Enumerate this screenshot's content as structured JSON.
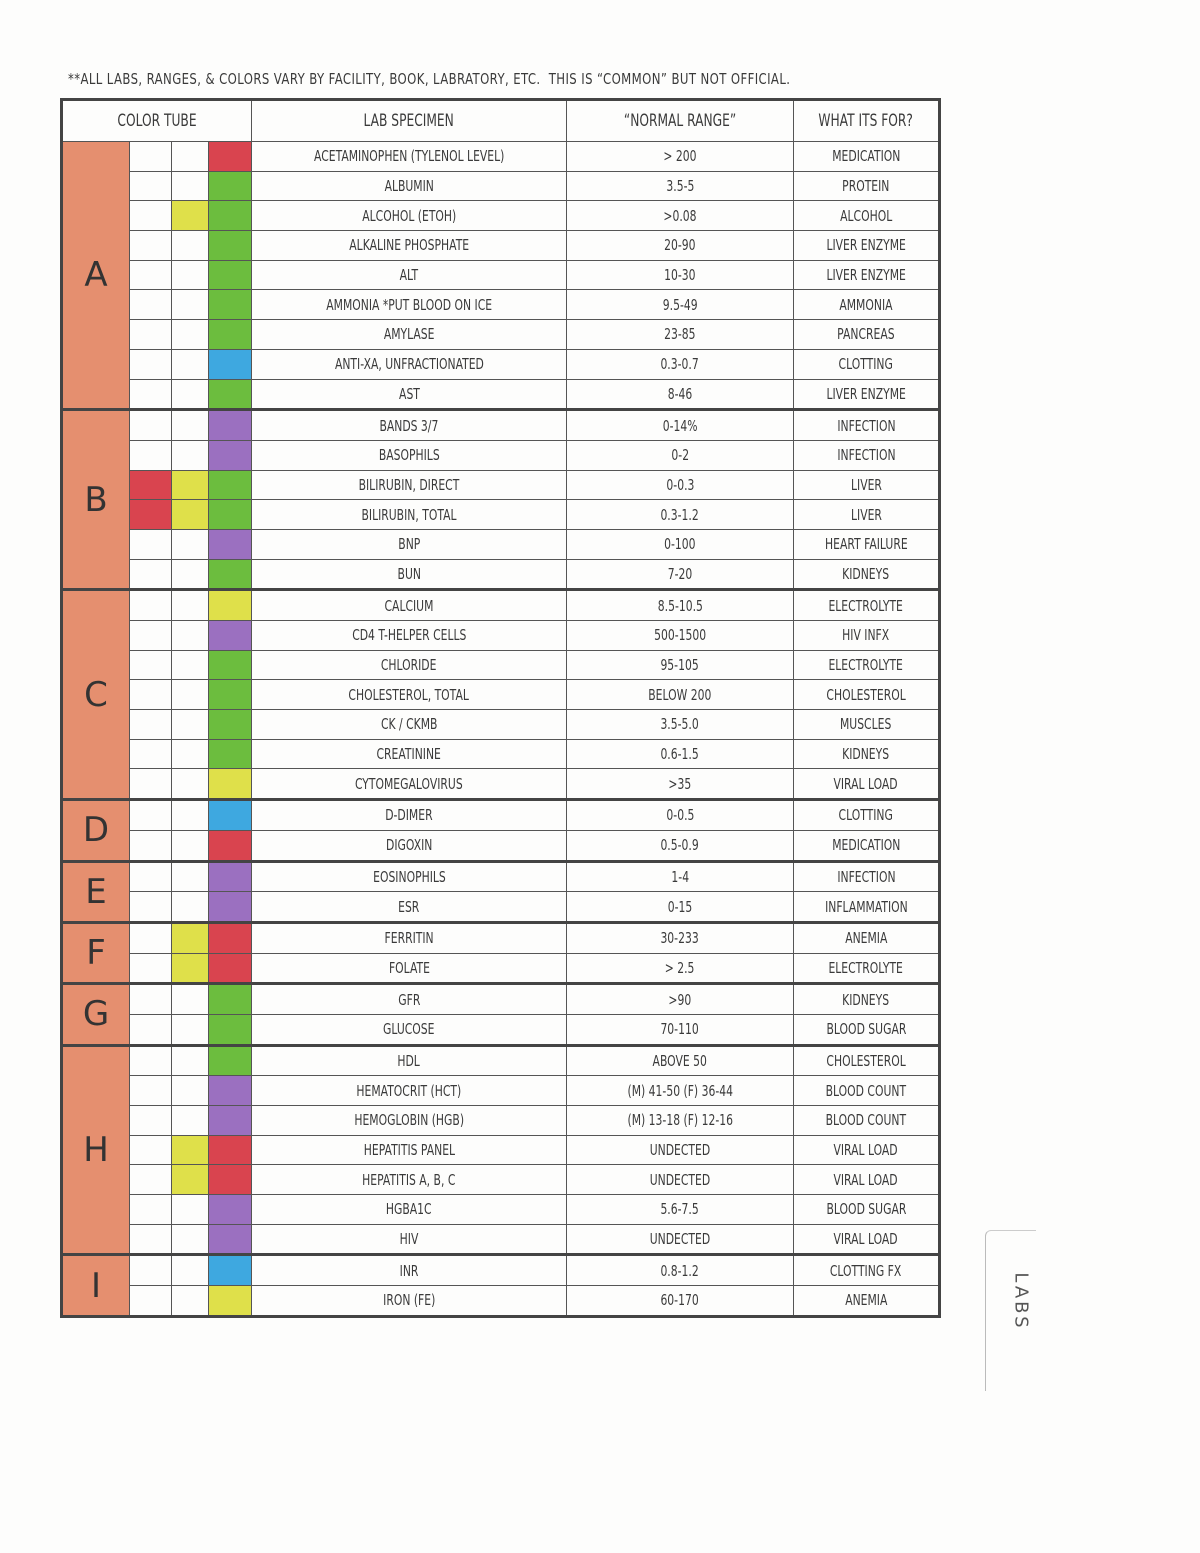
{
  "header": {
    "note": "**ALL LABS, RANGES, & COLORS VARY BY FACILITY, BOOK, LABRATORY, ETC.  THIS IS “COMMON” BUT NOT OFFICIAL."
  },
  "tab": "LABS",
  "table": {
    "columns": [
      "COLOR TUBE",
      "LAB SPECIMEN",
      "“NORMAL RANGE”",
      "WHAT ITS FOR?"
    ],
    "group_color": "#e58f6f",
    "groups": [
      {
        "letter": "A",
        "rows": [
          {
            "tubes": [
              null,
              null,
              "#d9444f"
            ],
            "specimen": "ACETAMINOPHEN (TYLENOL LEVEL)",
            "range": "> 200",
            "purpose": "MEDICATION"
          },
          {
            "tubes": [
              null,
              null,
              "#6cbd3e"
            ],
            "specimen": "ALBUMIN",
            "range": "3.5-5",
            "purpose": "PROTEIN"
          },
          {
            "tubes": [
              null,
              "#dfe04a",
              "#6cbd3e"
            ],
            "specimen": "ALCOHOL (ETOH)",
            "range": ">0.08",
            "purpose": "ALCOHOL"
          },
          {
            "tubes": [
              null,
              null,
              "#6cbd3e"
            ],
            "specimen": "ALKALINE PHOSPHATE",
            "range": "20-90",
            "purpose": "LIVER ENZYME"
          },
          {
            "tubes": [
              null,
              null,
              "#6cbd3e"
            ],
            "specimen": "ALT",
            "range": "10-30",
            "purpose": "LIVER ENZYME"
          },
          {
            "tubes": [
              null,
              null,
              "#6cbd3e"
            ],
            "specimen": "AMMONIA *PUT BLOOD ON ICE",
            "range": "9.5-49",
            "purpose": "AMMONIA"
          },
          {
            "tubes": [
              null,
              null,
              "#6cbd3e"
            ],
            "specimen": "AMYLASE",
            "range": "23-85",
            "purpose": "PANCREAS"
          },
          {
            "tubes": [
              null,
              null,
              "#3ea8e0"
            ],
            "specimen": "ANTI-XA, UNFRACTIONATED",
            "range": "0.3-0.7",
            "purpose": "CLOTTING"
          },
          {
            "tubes": [
              null,
              null,
              "#6cbd3e"
            ],
            "specimen": "AST",
            "range": "8-46",
            "purpose": "LIVER ENZYME"
          }
        ]
      },
      {
        "letter": "B",
        "rows": [
          {
            "tubes": [
              null,
              null,
              "#9b70c0"
            ],
            "specimen": "BANDS 3/7",
            "range": "0-14%",
            "purpose": "INFECTION"
          },
          {
            "tubes": [
              null,
              null,
              "#9b70c0"
            ],
            "specimen": "BASOPHILS",
            "range": "0-2",
            "purpose": "INFECTION"
          },
          {
            "tubes": [
              "#d9444f",
              "#dfe04a",
              "#6cbd3e"
            ],
            "specimen": "BILIRUBIN, DIRECT",
            "range": "0-0.3",
            "purpose": "LIVER"
          },
          {
            "tubes": [
              "#d9444f",
              "#dfe04a",
              "#6cbd3e"
            ],
            "specimen": "BILIRUBIN, TOTAL",
            "range": "0.3-1.2",
            "purpose": "LIVER"
          },
          {
            "tubes": [
              null,
              null,
              "#9b70c0"
            ],
            "specimen": "BNP",
            "range": "0-100",
            "purpose": "HEART FAILURE"
          },
          {
            "tubes": [
              null,
              null,
              "#6cbd3e"
            ],
            "specimen": "BUN",
            "range": "7-20",
            "purpose": "KIDNEYS"
          }
        ]
      },
      {
        "letter": "C",
        "rows": [
          {
            "tubes": [
              null,
              null,
              "#dfe04a"
            ],
            "specimen": "CALCIUM",
            "range": "8.5-10.5",
            "purpose": "ELECTROLYTE"
          },
          {
            "tubes": [
              null,
              null,
              "#9b70c0"
            ],
            "specimen": "CD4 T-HELPER CELLS",
            "range": "500-1500",
            "purpose": "HIV INFX"
          },
          {
            "tubes": [
              null,
              null,
              "#6cbd3e"
            ],
            "specimen": "CHLORIDE",
            "range": "95-105",
            "purpose": "ELECTROLYTE"
          },
          {
            "tubes": [
              null,
              null,
              "#6cbd3e"
            ],
            "specimen": "CHOLESTEROL, TOTAL",
            "range": "BELOW 200",
            "purpose": "CHOLESTEROL"
          },
          {
            "tubes": [
              null,
              null,
              "#6cbd3e"
            ],
            "specimen": "CK / CKMB",
            "range": "3.5-5.0",
            "purpose": "MUSCLES"
          },
          {
            "tubes": [
              null,
              null,
              "#6cbd3e"
            ],
            "specimen": "CREATININE",
            "range": "0.6-1.5",
            "purpose": "KIDNEYS"
          },
          {
            "tubes": [
              null,
              null,
              "#dfe04a"
            ],
            "specimen": "CYTOMEGALOVIRUS",
            "range": ">35",
            "purpose": "VIRAL LOAD"
          }
        ]
      },
      {
        "letter": "D",
        "rows": [
          {
            "tubes": [
              null,
              null,
              "#3ea8e0"
            ],
            "specimen": "D-DIMER",
            "range": "0-0.5",
            "purpose": "CLOTTING"
          },
          {
            "tubes": [
              null,
              null,
              "#d9444f"
            ],
            "specimen": "DIGOXIN",
            "range": "0.5-0.9",
            "purpose": "MEDICATION"
          }
        ]
      },
      {
        "letter": "E",
        "rows": [
          {
            "tubes": [
              null,
              null,
              "#9b70c0"
            ],
            "specimen": "EOSINOPHILS",
            "range": "1-4",
            "purpose": "INFECTION"
          },
          {
            "tubes": [
              null,
              null,
              "#9b70c0"
            ],
            "specimen": "ESR",
            "range": "0-15",
            "purpose": "INFLAMMATION"
          }
        ]
      },
      {
        "letter": "F",
        "rows": [
          {
            "tubes": [
              null,
              "#dfe04a",
              "#d9444f"
            ],
            "specimen": "FERRITIN",
            "range": "30-233",
            "purpose": "ANEMIA"
          },
          {
            "tubes": [
              null,
              "#dfe04a",
              "#d9444f"
            ],
            "specimen": "FOLATE",
            "range": "> 2.5",
            "purpose": "ELECTROLYTE"
          }
        ]
      },
      {
        "letter": "G",
        "rows": [
          {
            "tubes": [
              null,
              null,
              "#6cbd3e"
            ],
            "specimen": "GFR",
            "range": ">90",
            "purpose": "KIDNEYS"
          },
          {
            "tubes": [
              null,
              null,
              "#6cbd3e"
            ],
            "specimen": "GLUCOSE",
            "range": "70-110",
            "purpose": "BLOOD SUGAR"
          }
        ]
      },
      {
        "letter": "H",
        "rows": [
          {
            "tubes": [
              null,
              null,
              "#6cbd3e"
            ],
            "specimen": "HDL",
            "range": "ABOVE 50",
            "purpose": "CHOLESTEROL"
          },
          {
            "tubes": [
              null,
              null,
              "#9b70c0"
            ],
            "specimen": "HEMATOCRIT (HCT)",
            "range": "(M) 41-50  (F) 36-44",
            "purpose": "BLOOD COUNT"
          },
          {
            "tubes": [
              null,
              null,
              "#9b70c0"
            ],
            "specimen": "HEMOGLOBIN (HGB)",
            "range": "(M) 13-18 (F) 12-16",
            "purpose": "BLOOD COUNT"
          },
          {
            "tubes": [
              null,
              "#dfe04a",
              "#d9444f"
            ],
            "specimen": "HEPATITIS PANEL",
            "range": "UNDECTED",
            "purpose": "VIRAL LOAD"
          },
          {
            "tubes": [
              null,
              "#dfe04a",
              "#d9444f"
            ],
            "specimen": "HEPATITIS A, B, C",
            "range": "UNDECTED",
            "purpose": "VIRAL LOAD"
          },
          {
            "tubes": [
              null,
              null,
              "#9b70c0"
            ],
            "specimen": "HGBA1C",
            "range": "5.6-7.5",
            "purpose": "BLOOD SUGAR"
          },
          {
            "tubes": [
              null,
              null,
              "#9b70c0"
            ],
            "specimen": "HIV",
            "range": "UNDECTED",
            "purpose": "VIRAL LOAD"
          }
        ]
      },
      {
        "letter": "I",
        "rows": [
          {
            "tubes": [
              null,
              null,
              "#3ea8e0"
            ],
            "specimen": "INR",
            "range": "0.8-1.2",
            "purpose": "CLOTTING FX"
          },
          {
            "tubes": [
              null,
              null,
              "#dfe04a"
            ],
            "specimen": "IRON (FE)",
            "range": "60-170",
            "purpose": "ANEMIA"
          }
        ]
      }
    ]
  }
}
